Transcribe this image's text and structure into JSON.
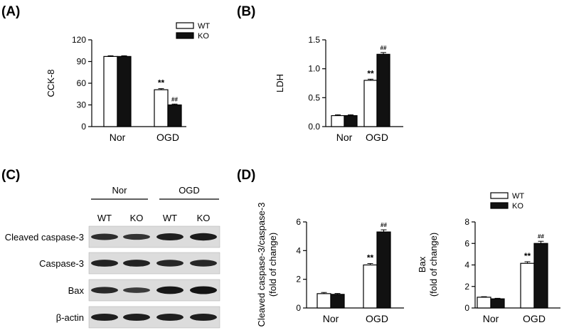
{
  "panel_labels": {
    "a": "(A)",
    "b": "(B)",
    "c": "(C)",
    "d": "(D)"
  },
  "legend": {
    "wt": "WT",
    "ko": "KO"
  },
  "colors": {
    "wt_fill": "#ffffff",
    "ko_fill": "#111111",
    "stroke": "#000000"
  },
  "chart_data": [
    {
      "id": "A",
      "type": "bar",
      "categories": [
        "Nor",
        "OGD"
      ],
      "ylabel": "CCK-8",
      "ylabel_lines": [
        "CCK-8"
      ],
      "ylim": [
        0,
        120
      ],
      "yticks": [
        0,
        30,
        60,
        90,
        120
      ],
      "ytick_labels": [
        "0",
        "30",
        "60",
        "90",
        "120"
      ],
      "legend_position": "top-right",
      "series": [
        {
          "name": "WT",
          "values": [
            97,
            51
          ],
          "errors": [
            1,
            1.5
          ],
          "annotations": [
            "",
            "**"
          ]
        },
        {
          "name": "KO",
          "values": [
            97,
            30
          ],
          "errors": [
            1,
            1.2
          ],
          "annotations": [
            "",
            "##"
          ]
        }
      ]
    },
    {
      "id": "B",
      "type": "bar",
      "categories": [
        "Nor",
        "OGD"
      ],
      "ylabel": "LDH",
      "ylabel_lines": [
        "LDH"
      ],
      "ylim": [
        0,
        1.5
      ],
      "yticks": [
        0,
        0.5,
        1.0,
        1.5
      ],
      "ytick_labels": [
        "0.0",
        "0.5",
        "1.0",
        "1.5"
      ],
      "series": [
        {
          "name": "WT",
          "values": [
            0.19,
            0.8
          ],
          "errors": [
            0.015,
            0.02
          ],
          "annotations": [
            "",
            "**"
          ]
        },
        {
          "name": "KO",
          "values": [
            0.19,
            1.25
          ],
          "errors": [
            0.015,
            0.03
          ],
          "annotations": [
            "",
            "##"
          ]
        }
      ]
    },
    {
      "id": "D1",
      "type": "bar",
      "categories": [
        "Nor",
        "OGD"
      ],
      "ylabel": "Cleaved caspase-3/caspase-3 (fold of change)",
      "ylabel_lines": [
        "Cleaved caspase-3/caspase-3",
        "(fold of change)"
      ],
      "ylim": [
        0,
        6
      ],
      "yticks": [
        0,
        2,
        4,
        6
      ],
      "ytick_labels": [
        "0",
        "2",
        "4",
        "6"
      ],
      "series": [
        {
          "name": "WT",
          "values": [
            1.0,
            3.0
          ],
          "errors": [
            0.08,
            0.1
          ],
          "annotations": [
            "",
            "**"
          ]
        },
        {
          "name": "KO",
          "values": [
            0.95,
            5.3
          ],
          "errors": [
            0.06,
            0.15
          ],
          "annotations": [
            "",
            "##"
          ]
        }
      ]
    },
    {
      "id": "D2",
      "type": "bar",
      "categories": [
        "Nor",
        "OGD"
      ],
      "ylabel": "Bax (fold of change)",
      "ylabel_lines": [
        "Bax",
        "(fold of change)"
      ],
      "ylim": [
        0,
        8
      ],
      "yticks": [
        0,
        2,
        4,
        6,
        8
      ],
      "ytick_labels": [
        "0",
        "2",
        "4",
        "6",
        "8"
      ],
      "legend_position": "top-right",
      "series": [
        {
          "name": "WT",
          "values": [
            1.0,
            4.15
          ],
          "errors": [
            0.05,
            0.15
          ],
          "annotations": [
            "",
            "**"
          ]
        },
        {
          "name": "KO",
          "values": [
            0.85,
            6.0
          ],
          "errors": [
            0.05,
            0.2
          ],
          "annotations": [
            "",
            "##"
          ]
        }
      ]
    }
  ],
  "blot": {
    "groups": [
      "Nor",
      "OGD"
    ],
    "lanes": [
      "WT",
      "KO",
      "WT",
      "KO"
    ],
    "rows": [
      {
        "label": "Cleaved caspase-3",
        "intensities": [
          0.65,
          0.55,
          0.85,
          0.9
        ]
      },
      {
        "label": "Caspase-3",
        "intensities": [
          0.8,
          0.8,
          0.75,
          0.75
        ]
      },
      {
        "label": "Bax",
        "intensities": [
          0.7,
          0.45,
          0.95,
          1.0
        ]
      },
      {
        "label": "β-actin",
        "intensities": [
          0.85,
          0.85,
          0.85,
          0.85
        ]
      }
    ]
  }
}
